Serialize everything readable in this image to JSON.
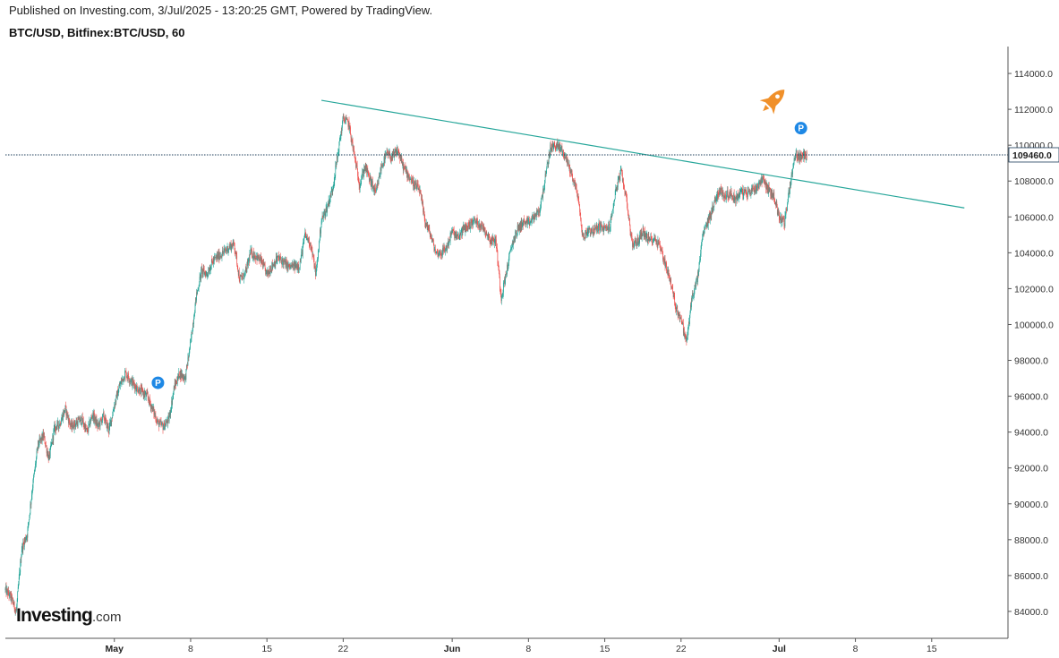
{
  "header": {
    "published": "Published on Investing.com, 3/Jul/2025 - 13:20:25 GMT, Powered by TradingView.",
    "symbol": "BTC/USD, Bitfinex:BTC/USD, 60"
  },
  "logo": {
    "main": "Investing",
    "suffix": ".com"
  },
  "colors": {
    "up": "#26a69a",
    "down": "#ef5350",
    "trendline": "#26a69a",
    "price_line": "#1c3d5a",
    "marker": "#1e88e5",
    "rocket": "#f0902a"
  },
  "chart_data": {
    "type": "candlestick",
    "title": "BTC/USD, Bitfinex:BTC/USD, 60",
    "interval_minutes": 60,
    "y_ticks": [
      84000,
      86000,
      88000,
      90000,
      92000,
      94000,
      96000,
      98000,
      100000,
      102000,
      104000,
      106000,
      108000,
      110000,
      112000,
      114000
    ],
    "y_tick_labels": [
      "84000.0",
      "86000.0",
      "88000.0",
      "90000.0",
      "92000.0",
      "94000.0",
      "96000.0",
      "98000.0",
      "100000.0",
      "102000.0",
      "104000.0",
      "106000.0",
      "108000.0",
      "110000.0",
      "112000.0",
      "114000.0"
    ],
    "ylim": [
      82500,
      115500
    ],
    "xlim": [
      "2025-04-21",
      "2025-07-22"
    ],
    "x_ticks": [
      {
        "date": "2025-05-01",
        "label": "May",
        "bold": true
      },
      {
        "date": "2025-05-08",
        "label": "8",
        "bold": false
      },
      {
        "date": "2025-05-15",
        "label": "15",
        "bold": false
      },
      {
        "date": "2025-05-22",
        "label": "22",
        "bold": false
      },
      {
        "date": "2025-06-01",
        "label": "Jun",
        "bold": true
      },
      {
        "date": "2025-06-08",
        "label": "8",
        "bold": false
      },
      {
        "date": "2025-06-15",
        "label": "15",
        "bold": false
      },
      {
        "date": "2025-06-22",
        "label": "22",
        "bold": false
      },
      {
        "date": "2025-07-01",
        "label": "Jul",
        "bold": true
      },
      {
        "date": "2025-07-08",
        "label": "8",
        "bold": false
      },
      {
        "date": "2025-07-15",
        "label": "15",
        "bold": false
      }
    ],
    "last_price": 109460,
    "last_price_label": "109460.0",
    "price_path": [
      [
        "2025-04-21T00:00",
        85200
      ],
      [
        "2025-04-21T12:00",
        84800
      ],
      [
        "2025-04-22T00:00",
        84000
      ],
      [
        "2025-04-22T12:00",
        87500
      ],
      [
        "2025-04-23T00:00",
        88300
      ],
      [
        "2025-04-23T12:00",
        91000
      ],
      [
        "2025-04-24T00:00",
        93300
      ],
      [
        "2025-04-24T12:00",
        93800
      ],
      [
        "2025-04-25T00:00",
        92500
      ],
      [
        "2025-04-25T12:00",
        94200
      ],
      [
        "2025-04-26T00:00",
        94500
      ],
      [
        "2025-04-26T12:00",
        95300
      ],
      [
        "2025-04-27T00:00",
        94300
      ],
      [
        "2025-04-28T00:00",
        94700
      ],
      [
        "2025-04-28T12:00",
        94000
      ],
      [
        "2025-04-29T00:00",
        95000
      ],
      [
        "2025-04-29T12:00",
        94300
      ],
      [
        "2025-04-30T00:00",
        94900
      ],
      [
        "2025-04-30T12:00",
        94100
      ],
      [
        "2025-05-01T00:00",
        95500
      ],
      [
        "2025-05-01T12:00",
        96600
      ],
      [
        "2025-05-02T00:00",
        97300
      ],
      [
        "2025-05-02T12:00",
        96900
      ],
      [
        "2025-05-03T00:00",
        96500
      ],
      [
        "2025-05-04T00:00",
        96000
      ],
      [
        "2025-05-04T12:00",
        95300
      ],
      [
        "2025-05-05T00:00",
        94500
      ],
      [
        "2025-05-05T12:00",
        94300
      ],
      [
        "2025-05-06T00:00",
        94700
      ],
      [
        "2025-05-06T12:00",
        96500
      ],
      [
        "2025-05-07T00:00",
        97300
      ],
      [
        "2025-05-07T12:00",
        97000
      ],
      [
        "2025-05-08T00:00",
        99000
      ],
      [
        "2025-05-08T12:00",
        101500
      ],
      [
        "2025-05-09T00:00",
        103000
      ],
      [
        "2025-05-09T12:00",
        102800
      ],
      [
        "2025-05-10T00:00",
        103500
      ],
      [
        "2025-05-10T12:00",
        103800
      ],
      [
        "2025-05-11T00:00",
        104000
      ],
      [
        "2025-05-11T12:00",
        104300
      ],
      [
        "2025-05-12T00:00",
        104500
      ],
      [
        "2025-05-12T12:00",
        102500
      ],
      [
        "2025-05-13T00:00",
        102800
      ],
      [
        "2025-05-13T12:00",
        104000
      ],
      [
        "2025-05-14T00:00",
        103800
      ],
      [
        "2025-05-14T12:00",
        103500
      ],
      [
        "2025-05-15T00:00",
        102800
      ],
      [
        "2025-05-15T12:00",
        103300
      ],
      [
        "2025-05-16T00:00",
        103700
      ],
      [
        "2025-05-16T12:00",
        103500
      ],
      [
        "2025-05-17T00:00",
        103200
      ],
      [
        "2025-05-18T00:00",
        103300
      ],
      [
        "2025-05-18T12:00",
        105000
      ],
      [
        "2025-05-19T00:00",
        104500
      ],
      [
        "2025-05-19T12:00",
        102800
      ],
      [
        "2025-05-20T00:00",
        105800
      ],
      [
        "2025-05-20T12:00",
        106500
      ],
      [
        "2025-05-21T00:00",
        107500
      ],
      [
        "2025-05-21T12:00",
        109500
      ],
      [
        "2025-05-22T00:00",
        111500
      ],
      [
        "2025-05-22T12:00",
        111200
      ],
      [
        "2025-05-23T00:00",
        109500
      ],
      [
        "2025-05-23T12:00",
        107800
      ],
      [
        "2025-05-24T00:00",
        108800
      ],
      [
        "2025-05-24T12:00",
        108000
      ],
      [
        "2025-05-25T00:00",
        107300
      ],
      [
        "2025-05-25T12:00",
        108800
      ],
      [
        "2025-05-26T00:00",
        109500
      ],
      [
        "2025-05-26T12:00",
        109300
      ],
      [
        "2025-05-27T00:00",
        109700
      ],
      [
        "2025-05-27T12:00",
        108800
      ],
      [
        "2025-05-28T00:00",
        108300
      ],
      [
        "2025-05-28T12:00",
        107800
      ],
      [
        "2025-05-29T00:00",
        107500
      ],
      [
        "2025-05-29T12:00",
        105800
      ],
      [
        "2025-05-30T00:00",
        105000
      ],
      [
        "2025-05-30T12:00",
        104000
      ],
      [
        "2025-05-31T00:00",
        104000
      ],
      [
        "2025-05-31T12:00",
        104300
      ],
      [
        "2025-06-01T00:00",
        105200
      ],
      [
        "2025-06-01T12:00",
        104800
      ],
      [
        "2025-06-02T00:00",
        105300
      ],
      [
        "2025-06-02T12:00",
        105500
      ],
      [
        "2025-06-03T00:00",
        105800
      ],
      [
        "2025-06-03T12:00",
        105600
      ],
      [
        "2025-06-04T00:00",
        105300
      ],
      [
        "2025-06-04T12:00",
        104700
      ],
      [
        "2025-06-05T00:00",
        104700
      ],
      [
        "2025-06-05T12:00",
        101500
      ],
      [
        "2025-06-06T00:00",
        103000
      ],
      [
        "2025-06-06T12:00",
        104500
      ],
      [
        "2025-06-07T00:00",
        105300
      ],
      [
        "2025-06-07T12:00",
        105700
      ],
      [
        "2025-06-08T00:00",
        105600
      ],
      [
        "2025-06-08T12:00",
        106000
      ],
      [
        "2025-06-09T00:00",
        106300
      ],
      [
        "2025-06-09T12:00",
        108000
      ],
      [
        "2025-06-10T00:00",
        109800
      ],
      [
        "2025-06-10T12:00",
        110000
      ],
      [
        "2025-06-11T00:00",
        109800
      ],
      [
        "2025-06-11T12:00",
        109200
      ],
      [
        "2025-06-12T00:00",
        108300
      ],
      [
        "2025-06-12T12:00",
        107300
      ],
      [
        "2025-06-13T00:00",
        104800
      ],
      [
        "2025-06-13T12:00",
        105300
      ],
      [
        "2025-06-14T00:00",
        105200
      ],
      [
        "2025-06-14T12:00",
        105500
      ],
      [
        "2025-06-15T00:00",
        105300
      ],
      [
        "2025-06-15T12:00",
        105500
      ],
      [
        "2025-06-16T00:00",
        107500
      ],
      [
        "2025-06-16T12:00",
        108500
      ],
      [
        "2025-06-17T00:00",
        107000
      ],
      [
        "2025-06-17T12:00",
        104500
      ],
      [
        "2025-06-18T00:00",
        104600
      ],
      [
        "2025-06-18T12:00",
        105200
      ],
      [
        "2025-06-19T00:00",
        104700
      ],
      [
        "2025-06-19T12:00",
        104800
      ],
      [
        "2025-06-20T00:00",
        104500
      ],
      [
        "2025-06-20T12:00",
        103500
      ],
      [
        "2025-06-21T00:00",
        102500
      ],
      [
        "2025-06-21T12:00",
        101000
      ],
      [
        "2025-06-22T00:00",
        100300
      ],
      [
        "2025-06-22T12:00",
        99000
      ],
      [
        "2025-06-23T00:00",
        101500
      ],
      [
        "2025-06-23T12:00",
        102500
      ],
      [
        "2025-06-24T00:00",
        105000
      ],
      [
        "2025-06-24T12:00",
        105800
      ],
      [
        "2025-06-25T00:00",
        106700
      ],
      [
        "2025-06-25T12:00",
        107500
      ],
      [
        "2025-06-26T00:00",
        107200
      ],
      [
        "2025-06-26T12:00",
        107300
      ],
      [
        "2025-06-27T00:00",
        107000
      ],
      [
        "2025-06-27T12:00",
        107400
      ],
      [
        "2025-06-28T00:00",
        107300
      ],
      [
        "2025-06-28T12:00",
        107500
      ],
      [
        "2025-06-29T00:00",
        107700
      ],
      [
        "2025-06-29T12:00",
        108200
      ],
      [
        "2025-06-30T00:00",
        107500
      ],
      [
        "2025-06-30T12:00",
        107200
      ],
      [
        "2025-07-01T00:00",
        106000
      ],
      [
        "2025-07-01T12:00",
        105700
      ],
      [
        "2025-07-02T00:00",
        107800
      ],
      [
        "2025-07-02T12:00",
        109500
      ],
      [
        "2025-07-03T00:00",
        109300
      ],
      [
        "2025-07-03T13:00",
        109460
      ]
    ],
    "trendline": {
      "start": [
        "2025-05-20T00:00",
        112500
      ],
      "end": [
        "2025-07-18T00:00",
        106500
      ]
    },
    "markers": [
      {
        "type": "P",
        "date": "2025-05-05T00:00",
        "price": 96750
      },
      {
        "type": "P",
        "date": "2025-07-03T00:00",
        "price": 110950
      }
    ],
    "rocket": {
      "date": "2025-06-30T12:00",
      "price": 112500
    }
  }
}
